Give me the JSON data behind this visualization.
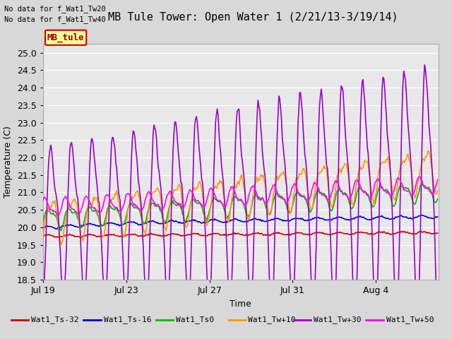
{
  "title": "MB Tule Tower: Open Water 1 (2/21/13-3/19/14)",
  "xlabel": "Time",
  "ylabel": "Temperature (C)",
  "ylim": [
    18.5,
    25.25
  ],
  "yticks": [
    18.5,
    19.0,
    19.5,
    20.0,
    20.5,
    21.0,
    21.5,
    22.0,
    22.5,
    23.0,
    23.5,
    24.0,
    24.5,
    25.0
  ],
  "xtick_labels": [
    "Jul 19",
    "Jul 23",
    "Jul 27",
    "Jul 31",
    "Aug 4"
  ],
  "xtick_offsets": [
    0,
    4,
    8,
    12,
    16
  ],
  "total_days": 19,
  "series_names": [
    "Wat1_Ts-32",
    "Wat1_Ts-16",
    "Wat1_Ts0",
    "Wat1_Tw+10",
    "Wat1_Tw+30",
    "Wat1_Tw+50"
  ],
  "series_colors": [
    "#cc0000",
    "#0000cc",
    "#00bb00",
    "#ff9900",
    "#9900cc",
    "#ff00ff"
  ],
  "series_lw": [
    1.2,
    1.2,
    1.2,
    1.2,
    1.2,
    1.2
  ],
  "no_data_text": [
    "No data for f_Wat1_Tw20",
    "No data for f_Wat1_Tw40"
  ],
  "legend_label": "MB_tule",
  "legend_box_facecolor": "#ffff99",
  "legend_box_edgecolor": "#cc0000",
  "bg_color": "#d8d8d8",
  "plot_bg_color": "#e8e8e8",
  "grid_color": "#ffffff",
  "title_fontsize": 11,
  "axis_label_fontsize": 9,
  "tick_fontsize": 9,
  "legend_fontsize": 8
}
